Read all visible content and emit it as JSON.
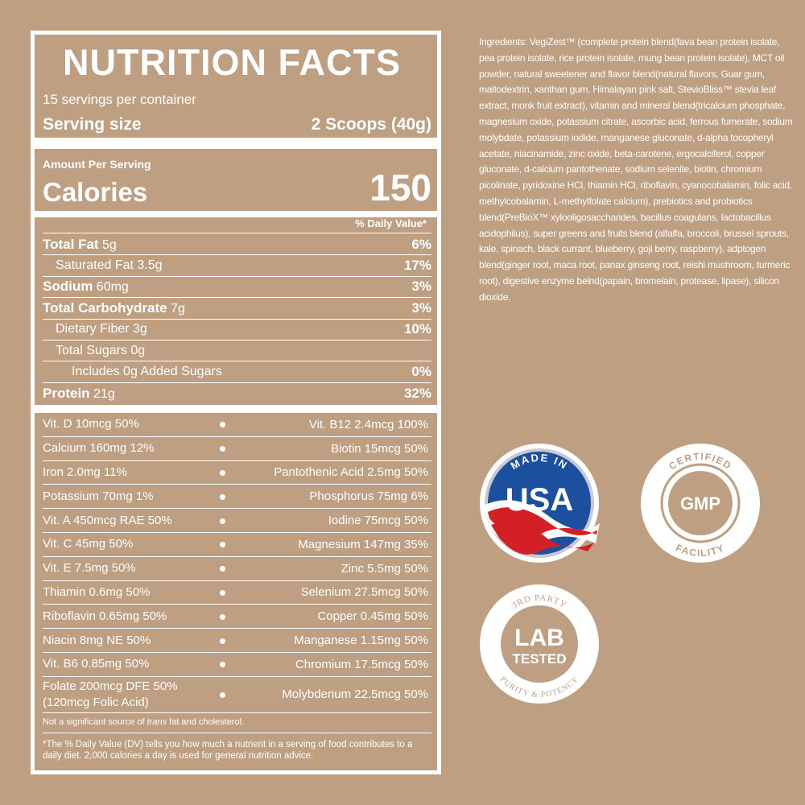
{
  "label": {
    "title": "NUTRITION FACTS",
    "servings": "15 servings per container",
    "serving_size_label": "Serving size",
    "serving_size": "2 Scoops (40g)",
    "amount_per_serving": "Amount Per Serving",
    "calories_label": "Calories",
    "calories": "150",
    "daily_value_header": "% Daily Value*",
    "nutrients": [
      {
        "name": "Total Fat",
        "amount": "5g",
        "dv": "6%"
      },
      {
        "name": "Saturated Fat",
        "amount": "3.5g",
        "dv": "17%"
      },
      {
        "name": "Sodium",
        "amount": "60mg",
        "dv": "3%"
      },
      {
        "name": "Total Carbohydrate",
        "amount": "7g",
        "dv": "3%"
      },
      {
        "name": "Dietary Fiber",
        "amount": "3g",
        "dv": "10%"
      },
      {
        "name": "Total Sugars",
        "amount": "0g"
      },
      {
        "name": "Includes 0g Added Sugars",
        "dv": "0%"
      },
      {
        "name": "Protein",
        "amount": "21g",
        "dv": "32%"
      }
    ],
    "vitamins": [
      {
        "left": [
          "Vit. D 10mcg 50%"
        ],
        "right": "Vit. B12 2.4mcg 100%"
      },
      {
        "left": [
          "Calcium 160mg 12%"
        ],
        "right": "Biotin 15mcg 50%"
      },
      {
        "left": [
          "Iron 2.0mg 11%"
        ],
        "right": "Pantothenic Acid 2.5mg 50%"
      },
      {
        "left": [
          "Potassium 70mg 1%"
        ],
        "right": "Phosphorus 75mg 6%"
      },
      {
        "left": [
          "Vit. A 450mcg RAE 50%"
        ],
        "right": "Iodine 75mcg 50%"
      },
      {
        "left": [
          "Vit. C 45mg 50%"
        ],
        "right": "Magnesium 147mg 35%"
      },
      {
        "left": [
          "Vit. E 7.5mg 50%"
        ],
        "right": "Zinc 5.5mg 50%"
      },
      {
        "left": [
          "Thiamin 0.6mg 50%"
        ],
        "right": "Selenium 27.5mcg 50%"
      },
      {
        "left": [
          "Riboflavin 0.65mg 50%"
        ],
        "right": "Copper 0.45mg 50%"
      },
      {
        "left": [
          "Niacin 8mg NE 50%"
        ],
        "right": "Manganese 1.15mg 50%"
      },
      {
        "left": [
          "Vit. B6 0.85mg 50%"
        ],
        "right": "Chromium 17.5mcg 50%"
      },
      {
        "left": [
          "Folate 200mcg DFE 50%",
          "(120mcg Folic Acid)"
        ],
        "right": "Molybdenum 22.5mcg 50%"
      }
    ],
    "note": [
      "Not a significant source of ",
      "trans",
      " fat and cholesterol."
    ],
    "footnote": "*The % Daily Value (DV) tells you how much a nutrient in a serving of food contributes to a daily diet. 2,000 calories a day is used for general nutrition advice."
  },
  "ingredients": "Ingredients: VegiZest™ (complete protein blend(fava bean protein isolate, pea protein isolate, rice protein isolate, mung bean protein isolate), MCT oil powder, natural sweetener and flavor blend(natural flavors, Guar gum, maltodextrin, xanthan gum, Himalayan pink salt, StevioBliss™ stevia leaf extract, monk fruit extract), vitamin and mineral blend(tricalcium phosphate, magnesium oxide, potassium citrate, ascorbic acid, ferrous fumerate, sodium molybdate, potassium iodide, manganese gluconate, d-alpha tocopheryl acetate, niacinamide, zinc oxide, beta-carotene, ergocalciferol, copper gluconate, d-calcium pantothenate, sodium selenite, biotin, chromium picolinate, pyridoxine HCl, thiamin HCl, riboflavin, cyanocobalamin, folic acid, methylcobalamin, L-methylfolate calcium), prebiotics and probiotics blend(PreBioX™ xylooligosaccharides, bacillus coagulans, lactobacillus acidophilus), super greens and fruits blend (alfalfa, broccoli, brussel sprouts, kale, spinach, black currant, blueberry, goji berry, raspberry), adptogen blend(ginger root, maca root, panax ginseng root, reishi mushroom, turmeric root), digestive enzyme belnd(papain, bromelain, protease, lipase), silicon dioxide.",
  "badges": {
    "usa": {
      "top": "MADE IN",
      "center": "USA"
    },
    "gmp": {
      "top": "CERTIFIED",
      "center": "GMP",
      "bottom": "FACILITY"
    },
    "lab": {
      "top": "3RD PARTY",
      "center": [
        "LAB",
        "TESTED"
      ],
      "bottom": "PURITY & POTENCY"
    }
  }
}
